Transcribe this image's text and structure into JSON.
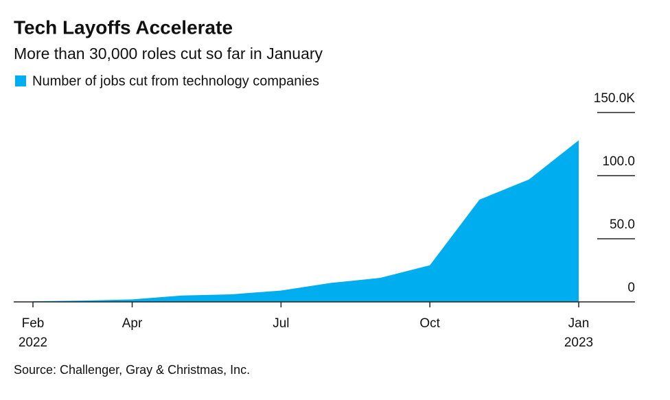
{
  "chart_data": {
    "type": "area",
    "title": "Tech Layoffs Accelerate",
    "subtitle": "More than 30,000 roles cut so far in January",
    "source": "Source: Challenger, Gray & Christmas, Inc.",
    "categories": [
      "Feb 2022",
      null,
      "Apr",
      null,
      null,
      "Jul",
      null,
      null,
      "Oct",
      null,
      null,
      "Jan 2023"
    ],
    "series": [
      {
        "name": "Number of jobs cut from technology companies",
        "color": "#00aeef",
        "values": [
          0.5,
          1,
          2,
          5,
          6,
          9,
          15,
          19,
          29,
          81,
          97,
          128
        ]
      }
    ],
    "ylim": [
      0,
      150
    ],
    "yticks": [
      0,
      {
        "value": 50,
        "label": "50.0"
      },
      {
        "value": 100,
        "label": "100.0"
      },
      {
        "value": 150,
        "label": "150.0K"
      }
    ],
    "grid": true
  }
}
